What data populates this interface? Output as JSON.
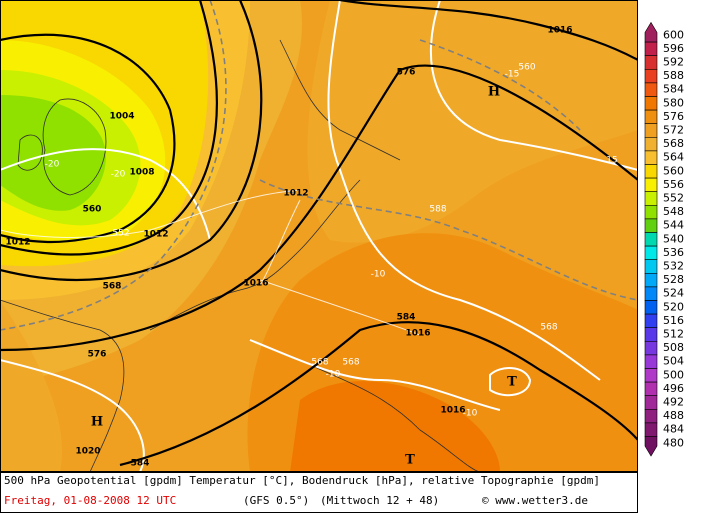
{
  "legend": {
    "labels": [
      600,
      596,
      592,
      588,
      584,
      580,
      576,
      572,
      568,
      564,
      560,
      556,
      552,
      548,
      544,
      540,
      536,
      532,
      528,
      524,
      520,
      516,
      512,
      508,
      504,
      500,
      496,
      492,
      488,
      484,
      480
    ],
    "colors": [
      "#a0205e",
      "#c0204a",
      "#d83030",
      "#e84020",
      "#f05a10",
      "#f07800",
      "#f09010",
      "#f0a020",
      "#f0b030",
      "#f8c030",
      "#f8d800",
      "#f8f000",
      "#c8f000",
      "#90e000",
      "#60d010",
      "#00d8b0",
      "#00e8e8",
      "#00c8f0",
      "#00a8f8",
      "#0088f8",
      "#0060f0",
      "#3040f0",
      "#5838e8",
      "#7838e0",
      "#9838d8",
      "#b038c8",
      "#b030b0",
      "#a02898",
      "#902080",
      "#801870",
      "#701060"
    ]
  },
  "map_labels": [
    "1016",
    "576",
    "-15",
    "560",
    "H",
    "1004",
    "-20",
    "1008",
    "-20",
    "15",
    "560",
    "1012",
    "588",
    "552",
    "1012",
    "1012",
    "-10",
    "568",
    "1016",
    "584",
    "1016",
    "568",
    "576",
    "568",
    "568",
    "-10",
    "T",
    "H",
    "1016",
    "-10",
    "1020",
    "584",
    "T"
  ],
  "footer": {
    "description": "500 hPa Geopotential [gpdm] Temperatur [°C], Bodendruck [hPa], relative Topographie [gpdm]",
    "date": "Freitag, 01-08-2008  12 UTC",
    "model": "(GFS 0.5°)",
    "run": "(Mittwoch 12 + 48)",
    "credit": "© www.wetter3.de"
  }
}
